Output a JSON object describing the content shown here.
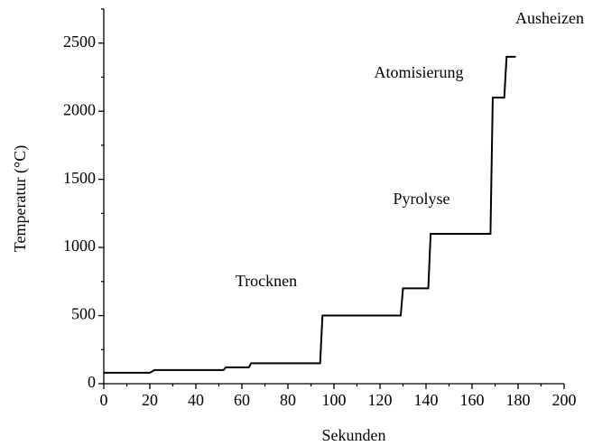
{
  "chart_data": {
    "type": "line",
    "x_label": "Sekunden",
    "y_label": "Temperatur (°C)",
    "x": [
      0,
      20,
      22,
      52,
      53,
      63,
      64,
      94,
      95,
      129,
      130,
      141,
      142,
      168,
      169,
      174,
      175,
      179
    ],
    "values": [
      80,
      80,
      100,
      100,
      120,
      120,
      150,
      150,
      500,
      500,
      700,
      700,
      1100,
      1100,
      2100,
      2100,
      2400,
      2400
    ],
    "color": "#000000",
    "xlim": [
      0,
      200
    ],
    "xticks": [
      0,
      20,
      40,
      60,
      80,
      100,
      120,
      140,
      160,
      180,
      200
    ],
    "ylim": [
      0,
      2750
    ],
    "yticks": [
      0,
      500,
      1000,
      1500,
      2000,
      2500
    ],
    "annotations": [
      "Trocknen",
      "Pyrolyse",
      "Atomisierung",
      "Ausheizen"
    ]
  }
}
